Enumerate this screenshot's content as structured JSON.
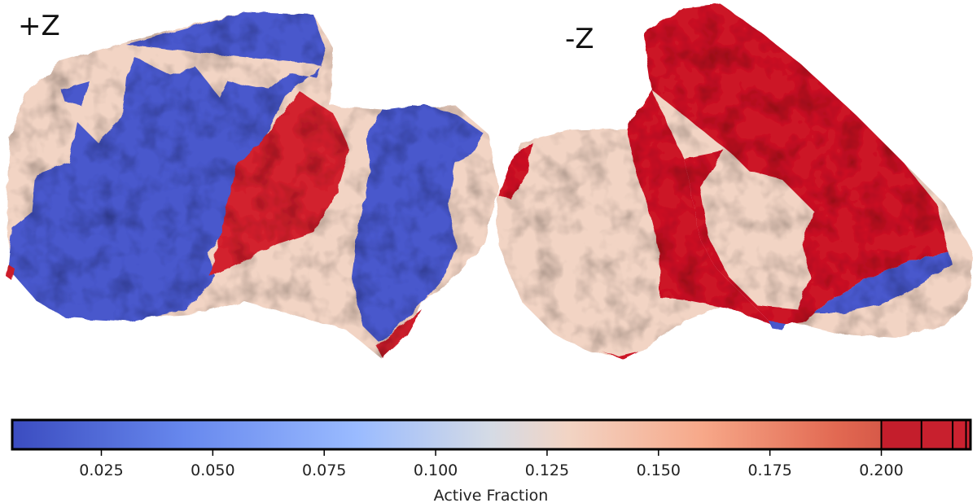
{
  "views": {
    "plus_label": "+Z",
    "minus_label": "-Z"
  },
  "colorbar": {
    "label": "Active Fraction",
    "min": 0.005,
    "max": 0.22,
    "ticks": [
      "0.025",
      "0.050",
      "0.075",
      "0.100",
      "0.125",
      "0.150",
      "0.175",
      "0.200"
    ],
    "tick_values": [
      0.025,
      0.05,
      0.075,
      0.1,
      0.125,
      0.15,
      0.175,
      0.2
    ],
    "segment_boundaries": [
      0.2,
      0.209,
      0.216,
      0.219
    ],
    "colormap": "coolwarm"
  },
  "colors": {
    "low": "#3b4cc0",
    "mid": "#f2d4c4",
    "high": "#c8142b",
    "outline": "#000000"
  }
}
